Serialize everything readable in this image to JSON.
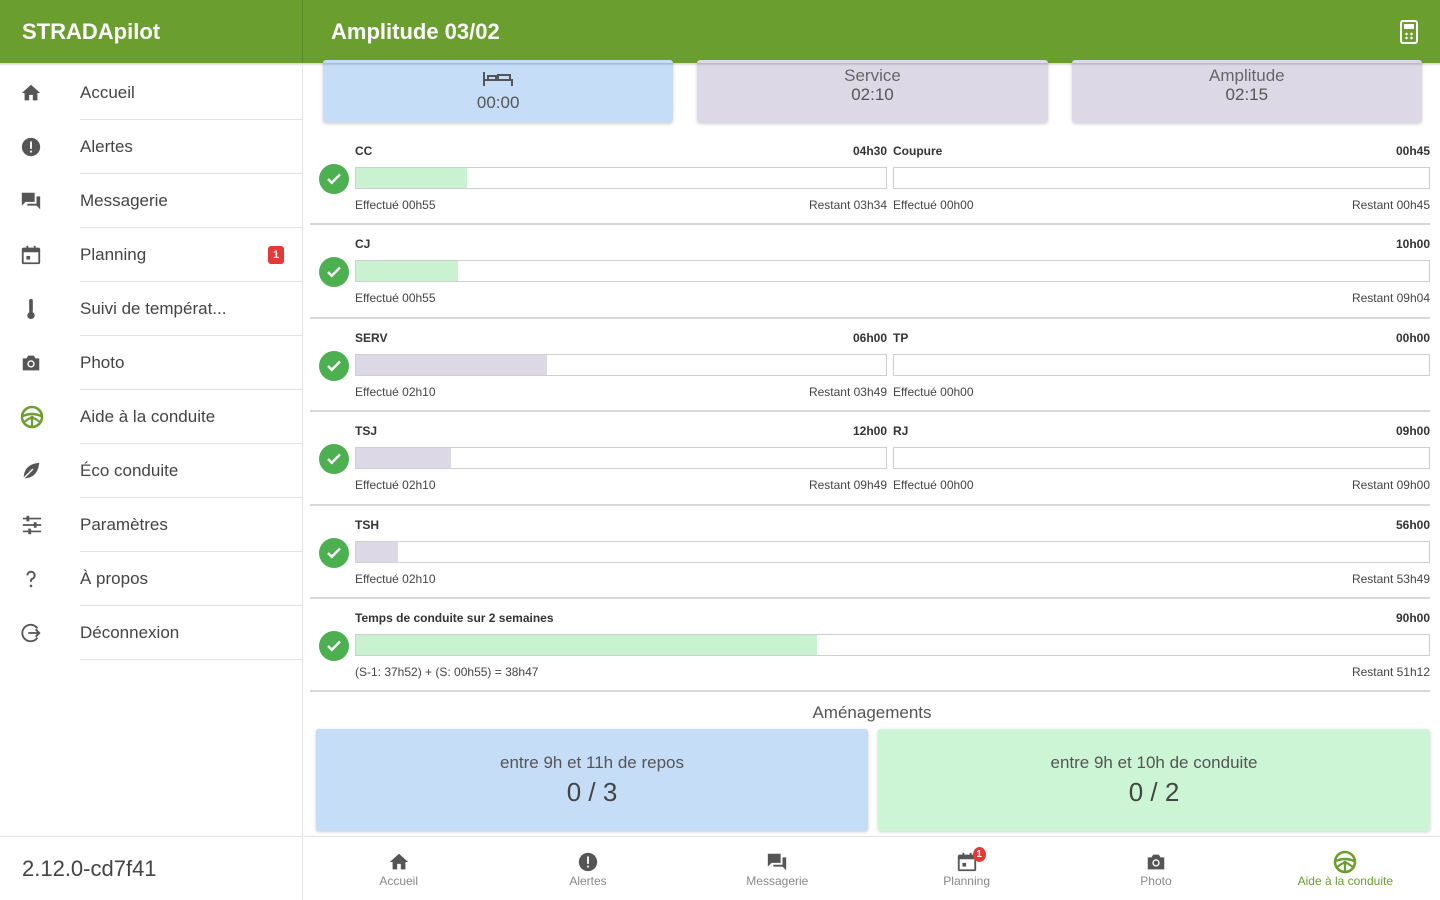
{
  "app": {
    "name": "STRADApilot",
    "version": "2.12.0-cd7f41"
  },
  "header": {
    "title": "Amplitude 03/02",
    "action_icon": "calculator-icon"
  },
  "colors": {
    "primary": "#6a9e2f",
    "fill_green": "#c9f2d1",
    "fill_purple": "#dcd8e6",
    "card_blue": "#c5ddf7",
    "card_purple": "#ddd8e6",
    "card_green": "#ccf5d5",
    "badge_red": "#e53935",
    "check_green": "#4caf50"
  },
  "sidebar": {
    "items": [
      {
        "label": "Accueil",
        "icon": "home-icon"
      },
      {
        "label": "Alertes",
        "icon": "alert-icon"
      },
      {
        "label": "Messagerie",
        "icon": "chat-icon"
      },
      {
        "label": "Planning",
        "icon": "calendar-icon",
        "badge": "1"
      },
      {
        "label": "Suivi de températ...",
        "icon": "thermometer-icon"
      },
      {
        "label": "Photo",
        "icon": "camera-icon"
      },
      {
        "label": "Aide à la conduite",
        "icon": "steering-wheel-icon"
      },
      {
        "label": "Éco conduite",
        "icon": "leaf-icon"
      },
      {
        "label": "Paramètres",
        "icon": "sliders-icon"
      },
      {
        "label": "À propos",
        "icon": "question-icon"
      },
      {
        "label": "Déconnexion",
        "icon": "logout-icon"
      }
    ]
  },
  "summary_cards": [
    {
      "title": "",
      "icon": "bed-icon",
      "value": "00:00"
    },
    {
      "title": "Service",
      "value": "02:10"
    },
    {
      "title": "Amplitude",
      "value": "02:15"
    }
  ],
  "rows": [
    {
      "left": {
        "label": "CC",
        "limit": "04h30",
        "done": "Effectué 00h55",
        "remaining": "Restant 03h34",
        "fill": 0.21,
        "color": "green"
      },
      "right": {
        "label": "Coupure",
        "limit": "00h45",
        "done": "Effectué 00h00",
        "remaining": "Restant 00h45",
        "fill": 0,
        "color": "green"
      }
    },
    {
      "full": {
        "label": "CJ",
        "limit": "10h00",
        "done": "Effectué 00h55",
        "remaining": "Restant 09h04",
        "fill": 0.095,
        "color": "green"
      }
    },
    {
      "left": {
        "label": "SERV",
        "limit": "06h00",
        "done": "Effectué 02h10",
        "remaining": "Restant 03h49",
        "fill": 0.36,
        "color": "purple"
      },
      "right": {
        "label": "TP",
        "limit": "00h00",
        "done": "Effectué 00h00",
        "remaining": "",
        "fill": 0,
        "color": "purple"
      }
    },
    {
      "left": {
        "label": "TSJ",
        "limit": "12h00",
        "done": "Effectué 02h10",
        "remaining": "Restant 09h49",
        "fill": 0.18,
        "color": "purple"
      },
      "right": {
        "label": "RJ",
        "limit": "09h00",
        "done": "Effectué 00h00",
        "remaining": "Restant 09h00",
        "fill": 0,
        "color": "purple"
      }
    },
    {
      "full": {
        "label": "TSH",
        "limit": "56h00",
        "done": "Effectué 02h10",
        "remaining": "Restant 53h49",
        "fill": 0.039,
        "color": "purple"
      }
    },
    {
      "full": {
        "label": "Temps de conduite sur 2 semaines",
        "limit": "90h00",
        "done": "(S-1: 37h52) + (S: 00h55) = 38h47",
        "remaining": "Restant 51h12",
        "fill": 0.43,
        "color": "green"
      }
    }
  ],
  "amenagements": {
    "title": "Aménagements",
    "cards": [
      {
        "label": "entre 9h et 11h de repos",
        "value": "0 / 3",
        "color": "#c5ddf7"
      },
      {
        "label": "entre 9h et 10h de conduite",
        "value": "0 / 2",
        "color": "#ccf5d5"
      }
    ]
  },
  "bottom_nav": [
    {
      "label": "Accueil",
      "icon": "home-icon"
    },
    {
      "label": "Alertes",
      "icon": "alert-icon"
    },
    {
      "label": "Messagerie",
      "icon": "chat-icon"
    },
    {
      "label": "Planning",
      "icon": "calendar-icon",
      "badge": "1"
    },
    {
      "label": "Photo",
      "icon": "camera-icon"
    },
    {
      "label": "Aide à la conduite",
      "icon": "steering-wheel-icon",
      "active": true
    }
  ]
}
